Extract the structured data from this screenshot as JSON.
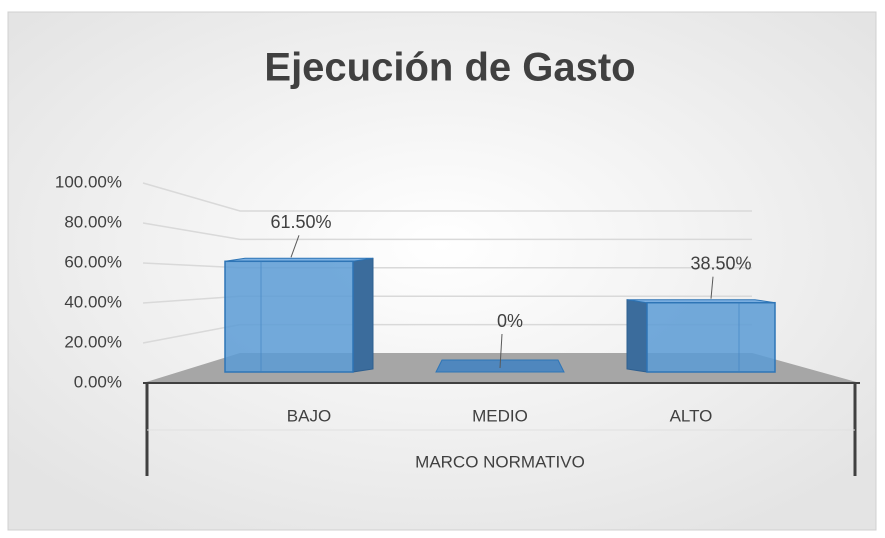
{
  "chart_data": {
    "type": "bar3d",
    "title": "Ejecución de Gasto",
    "categories": [
      "BAJO",
      "MEDIO",
      "ALTO"
    ],
    "values": [
      61.5,
      0,
      38.5
    ],
    "value_labels": [
      "61.50%",
      "0%",
      "38.50%"
    ],
    "color": "#5b9bd5",
    "x_label": "MARCO NORMATIVO",
    "ylim": [
      0,
      100
    ],
    "yticks": [
      {
        "value": 0,
        "label": "0.00%"
      },
      {
        "value": 20,
        "label": "20.00%"
      },
      {
        "value": 40,
        "label": "40.00%"
      },
      {
        "value": 60,
        "label": "60.00%"
      },
      {
        "value": 80,
        "label": "80.00%"
      },
      {
        "value": 100,
        "label": "100.00%"
      }
    ],
    "grid": true
  }
}
